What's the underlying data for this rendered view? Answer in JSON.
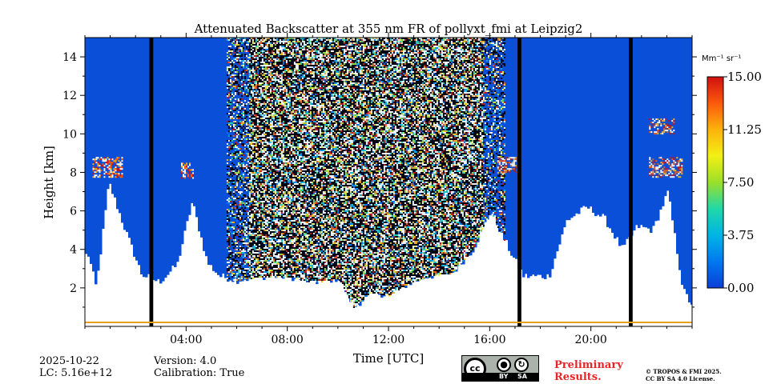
{
  "chart_data": {
    "type": "heatmap",
    "title": "Attenuated Backscatter at 355 nm FR of pollyxt_fmi at Leipzig2",
    "xlabel": "Time [UTC]",
    "ylabel": "Height [km]",
    "x_range_hours": [
      0,
      24
    ],
    "ylim": [
      0,
      15
    ],
    "x_ticks": [
      "04:00",
      "08:00",
      "12:00",
      "16:00",
      "20:00"
    ],
    "x_tick_hours": [
      4,
      8,
      12,
      16,
      20
    ],
    "y_ticks": [
      2,
      4,
      6,
      8,
      10,
      12,
      14
    ],
    "colorbar": {
      "unit_label": "Mm⁻¹ sr⁻¹",
      "range": [
        0,
        15
      ],
      "ticks": [
        "0.00",
        "3.75",
        "7.50",
        "11.25",
        "15.00"
      ],
      "tick_values": [
        0,
        3.75,
        7.5,
        11.25,
        15
      ],
      "colormap": "jet"
    },
    "colors": {
      "background_signal": "#0a4fd8",
      "no_data": "#ffffff",
      "gap": "#000000"
    },
    "data_gaps_hours": [
      [
        2.55,
        2.7
      ],
      [
        17.1,
        17.25
      ],
      [
        21.5,
        21.65
      ]
    ],
    "cloud_base_profile": [
      {
        "t": 0.1,
        "h": 3.7
      },
      {
        "t": 0.4,
        "h": 2.0
      },
      {
        "t": 0.9,
        "h": 7.5
      },
      {
        "t": 1.5,
        "h": 5.2
      },
      {
        "t": 2.2,
        "h": 2.7
      },
      {
        "t": 2.9,
        "h": 2.3
      },
      {
        "t": 3.6,
        "h": 3.2
      },
      {
        "t": 4.2,
        "h": 6.5
      },
      {
        "t": 4.8,
        "h": 3.3
      },
      {
        "t": 5.3,
        "h": 2.6
      },
      {
        "t": 6.0,
        "h": 2.4
      },
      {
        "t": 7.0,
        "h": 2.6
      },
      {
        "t": 8.0,
        "h": 2.6
      },
      {
        "t": 9.0,
        "h": 2.3
      },
      {
        "t": 10.0,
        "h": 2.5
      },
      {
        "t": 10.6,
        "h": 1.0
      },
      {
        "t": 11.3,
        "h": 1.8
      },
      {
        "t": 12.0,
        "h": 1.6
      },
      {
        "t": 12.7,
        "h": 2.2
      },
      {
        "t": 13.5,
        "h": 2.6
      },
      {
        "t": 14.5,
        "h": 2.8
      },
      {
        "t": 15.3,
        "h": 4.0
      },
      {
        "t": 16.0,
        "h": 6.0
      },
      {
        "t": 16.8,
        "h": 3.8
      },
      {
        "t": 17.3,
        "h": 2.6
      },
      {
        "t": 18.3,
        "h": 2.6
      },
      {
        "t": 19.0,
        "h": 5.5
      },
      {
        "t": 19.8,
        "h": 6.2
      },
      {
        "t": 20.5,
        "h": 5.6
      },
      {
        "t": 21.2,
        "h": 4.0
      },
      {
        "t": 21.8,
        "h": 5.2
      },
      {
        "t": 22.4,
        "h": 5.0
      },
      {
        "t": 23.0,
        "h": 7.0
      },
      {
        "t": 23.6,
        "h": 1.9
      },
      {
        "t": 23.9,
        "h": 1.2
      }
    ],
    "noise_region_hours": [
      5.6,
      16.6
    ],
    "upper_cloud_layers": [
      {
        "t0": 0.3,
        "t1": 1.5,
        "h0": 7.8,
        "h1": 8.8
      },
      {
        "t0": 3.8,
        "t1": 4.3,
        "h0": 7.7,
        "h1": 8.5
      },
      {
        "t0": 16.3,
        "t1": 17.0,
        "h0": 8.0,
        "h1": 8.8
      },
      {
        "t0": 22.3,
        "t1": 23.6,
        "h0": 7.8,
        "h1": 8.8
      },
      {
        "t0": 22.3,
        "t1": 23.3,
        "h0": 10.0,
        "h1": 10.8
      }
    ]
  },
  "footer": {
    "date": "2025-10-22",
    "lc": "LC: 5.16e+12",
    "version": "Version: 4.0",
    "calibration": "Calibration: True",
    "license_badge_by": "BY",
    "license_badge_sa": "SA",
    "license_badge_cc": "cc",
    "preliminary_line1": "Preliminary",
    "preliminary_line2": "Results.",
    "copyright_line1": "© TROPOS & FMI 2025.",
    "copyright_line2": "CC BY SA 4.0 License."
  }
}
